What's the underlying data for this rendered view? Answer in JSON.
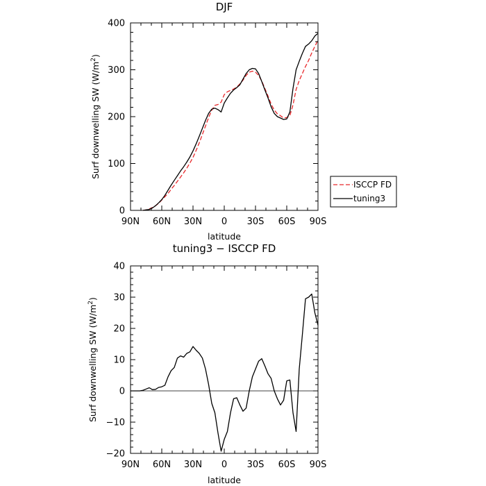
{
  "chart_data": [
    {
      "type": "line",
      "title": "DJF",
      "xlabel": "latitude",
      "ylabel": "Surf downwelling SW (W/m²)",
      "ylabel_main": "Surf downwelling SW (W/m",
      "ylabel_sup": "2",
      "ylabel_end": ")",
      "xlim": [
        -90,
        90
      ],
      "ylim": [
        0,
        400
      ],
      "x_ticks": [
        -90,
        -60,
        -30,
        0,
        30,
        60,
        90
      ],
      "x_tick_labels": [
        "90N",
        "60N",
        "30N",
        "0",
        "30S",
        "60S",
        "90S"
      ],
      "y_ticks": [
        0,
        100,
        200,
        300,
        400
      ],
      "y_tick_labels": [
        "0",
        "100",
        "200",
        "300",
        "400"
      ],
      "legend_placement": "right",
      "series": [
        {
          "name": "ISCCP FD",
          "color": "#e8272a",
          "style": "dashed",
          "x": [
            -78,
            -75,
            -72,
            -69,
            -66,
            -63,
            -60,
            -57,
            -54,
            -51,
            -48,
            -45,
            -42,
            -39,
            -36,
            -33,
            -30,
            -27,
            -24,
            -21,
            -18,
            -15,
            -12,
            -9,
            -6,
            -3,
            0,
            3,
            6,
            9,
            12,
            15,
            18,
            21,
            24,
            27,
            30,
            33,
            36,
            39,
            42,
            45,
            48,
            51,
            54,
            57,
            60,
            63,
            66,
            69,
            72,
            75,
            78,
            81,
            84,
            87,
            90
          ],
          "y": [
            0,
            1,
            3,
            6,
            10,
            15,
            22,
            29,
            36,
            45,
            53,
            62,
            71,
            80,
            90,
            101,
            113,
            128,
            144,
            162,
            180,
            198,
            214,
            224,
            226,
            231,
            247,
            253,
            256,
            259,
            263,
            270,
            278,
            288,
            295,
            297,
            295,
            288,
            276,
            260,
            244,
            227,
            214,
            206,
            202,
            197,
            198,
            202,
            225,
            258,
            277,
            292,
            307,
            320,
            336,
            350,
            363
          ]
        },
        {
          "name": "tuning3",
          "color": "#000000",
          "style": "solid",
          "x": [
            -78,
            -75,
            -72,
            -69,
            -66,
            -63,
            -60,
            -57,
            -54,
            -51,
            -48,
            -45,
            -42,
            -39,
            -36,
            -33,
            -30,
            -27,
            -24,
            -21,
            -18,
            -15,
            -12,
            -9,
            -6,
            -3,
            0,
            3,
            6,
            9,
            12,
            15,
            18,
            21,
            24,
            27,
            30,
            33,
            36,
            39,
            42,
            45,
            48,
            51,
            54,
            57,
            60,
            63,
            66,
            69,
            72,
            75,
            78,
            81,
            84,
            87,
            90
          ],
          "y": [
            0,
            1,
            2,
            5,
            10,
            16,
            23,
            32,
            43,
            54,
            64,
            74,
            84,
            93,
            103,
            114,
            127,
            142,
            158,
            175,
            192,
            207,
            216,
            218,
            215,
            210,
            229,
            240,
            250,
            257,
            262,
            268,
            280,
            292,
            300,
            303,
            302,
            292,
            275,
            257,
            240,
            221,
            207,
            200,
            197,
            194,
            195,
            210,
            260,
            300,
            318,
            335,
            350,
            355,
            362,
            372,
            378
          ]
        }
      ]
    },
    {
      "type": "line",
      "title": "tuning3 − ISCCP FD",
      "xlabel": "latitude",
      "ylabel": "Surf downwelling SW (W/m²)",
      "ylabel_main": "Surf downwelling SW (W/m",
      "ylabel_sup": "2",
      "ylabel_end": ")",
      "xlim": [
        -90,
        90
      ],
      "ylim": [
        -20,
        40
      ],
      "x_ticks": [
        -90,
        -60,
        -30,
        0,
        30,
        60,
        90
      ],
      "x_tick_labels": [
        "90N",
        "60N",
        "30N",
        "0",
        "30S",
        "60S",
        "90S"
      ],
      "y_ticks": [
        -20,
        -10,
        0,
        10,
        20,
        30,
        40
      ],
      "y_tick_labels": [
        "−20",
        "−10",
        "0",
        "10",
        "20",
        "30",
        "40"
      ],
      "series": [
        {
          "color": "#000000",
          "style": "solid",
          "x": [
            -90,
            -87,
            -84,
            -81,
            -78,
            -75,
            -72,
            -69,
            -66,
            -63,
            -60,
            -57,
            -54,
            -51,
            -48,
            -45,
            -42,
            -39,
            -36,
            -33,
            -30,
            -27,
            -24,
            -21,
            -18,
            -15,
            -12,
            -9,
            -6,
            -3,
            0,
            3,
            6,
            9,
            12,
            15,
            18,
            21,
            24,
            27,
            30,
            33,
            36,
            39,
            42,
            45,
            48,
            51,
            54,
            57,
            60,
            63,
            66,
            69,
            72,
            75,
            78,
            81,
            84,
            87,
            90
          ],
          "y": [
            0,
            0,
            0,
            0,
            0.2,
            0.6,
            1.0,
            0.4,
            0.5,
            1.1,
            1.3,
            1.8,
            4.5,
            6.5,
            7.5,
            10.5,
            11.2,
            10.8,
            12.0,
            12.5,
            14.2,
            13.0,
            12.0,
            10.5,
            7.0,
            2.0,
            -4.0,
            -7.0,
            -13.5,
            -19.3,
            -15.5,
            -13.0,
            -7.0,
            -2.5,
            -2.2,
            -4.5,
            -6.5,
            -5.5,
            0.0,
            4.5,
            7.0,
            9.5,
            10.3,
            8.0,
            5.5,
            4.0,
            0.0,
            -2.5,
            -4.5,
            -3.0,
            3.2,
            3.5,
            -7.0,
            -13.0,
            7.0,
            18.0,
            29.5,
            30.0,
            31.0,
            25.0,
            21.0
          ]
        }
      ]
    }
  ]
}
